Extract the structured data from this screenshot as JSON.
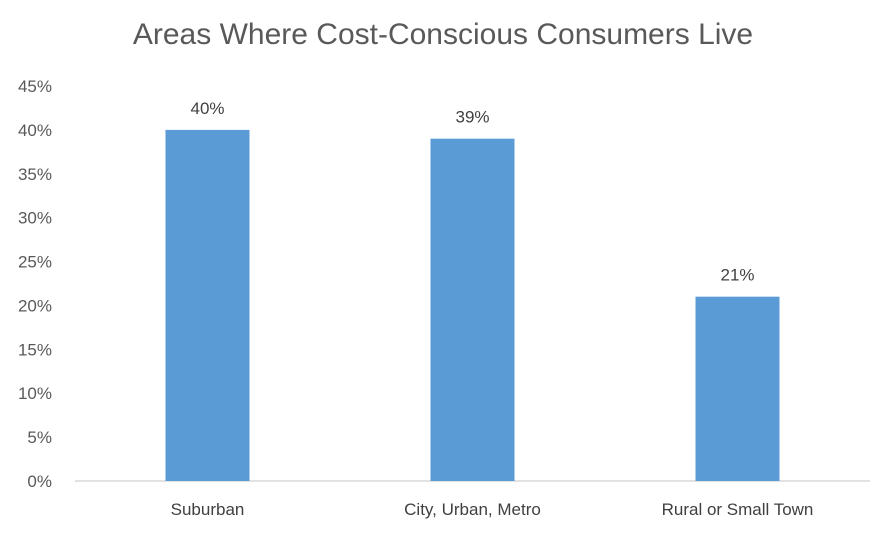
{
  "chart_data": {
    "type": "bar",
    "title": "Areas Where Cost-Conscious Consumers Live",
    "categories": [
      "Suburban",
      "City, Urban, Metro",
      "Rural or Small Town"
    ],
    "values": [
      40,
      39,
      21
    ],
    "data_labels": [
      "40%",
      "39%",
      "21%"
    ],
    "ylim": [
      0,
      45
    ],
    "y_ticks": [
      0,
      5,
      10,
      15,
      20,
      25,
      30,
      35,
      40,
      45
    ],
    "y_tick_labels": [
      "0%",
      "5%",
      "10%",
      "15%",
      "20%",
      "25%",
      "30%",
      "35%",
      "40%",
      "45%"
    ],
    "xlabel": "",
    "ylabel": "",
    "grid": false,
    "legend": "none",
    "bar_color": "#5B9BD5",
    "axis_color": "#D9D9D9"
  }
}
